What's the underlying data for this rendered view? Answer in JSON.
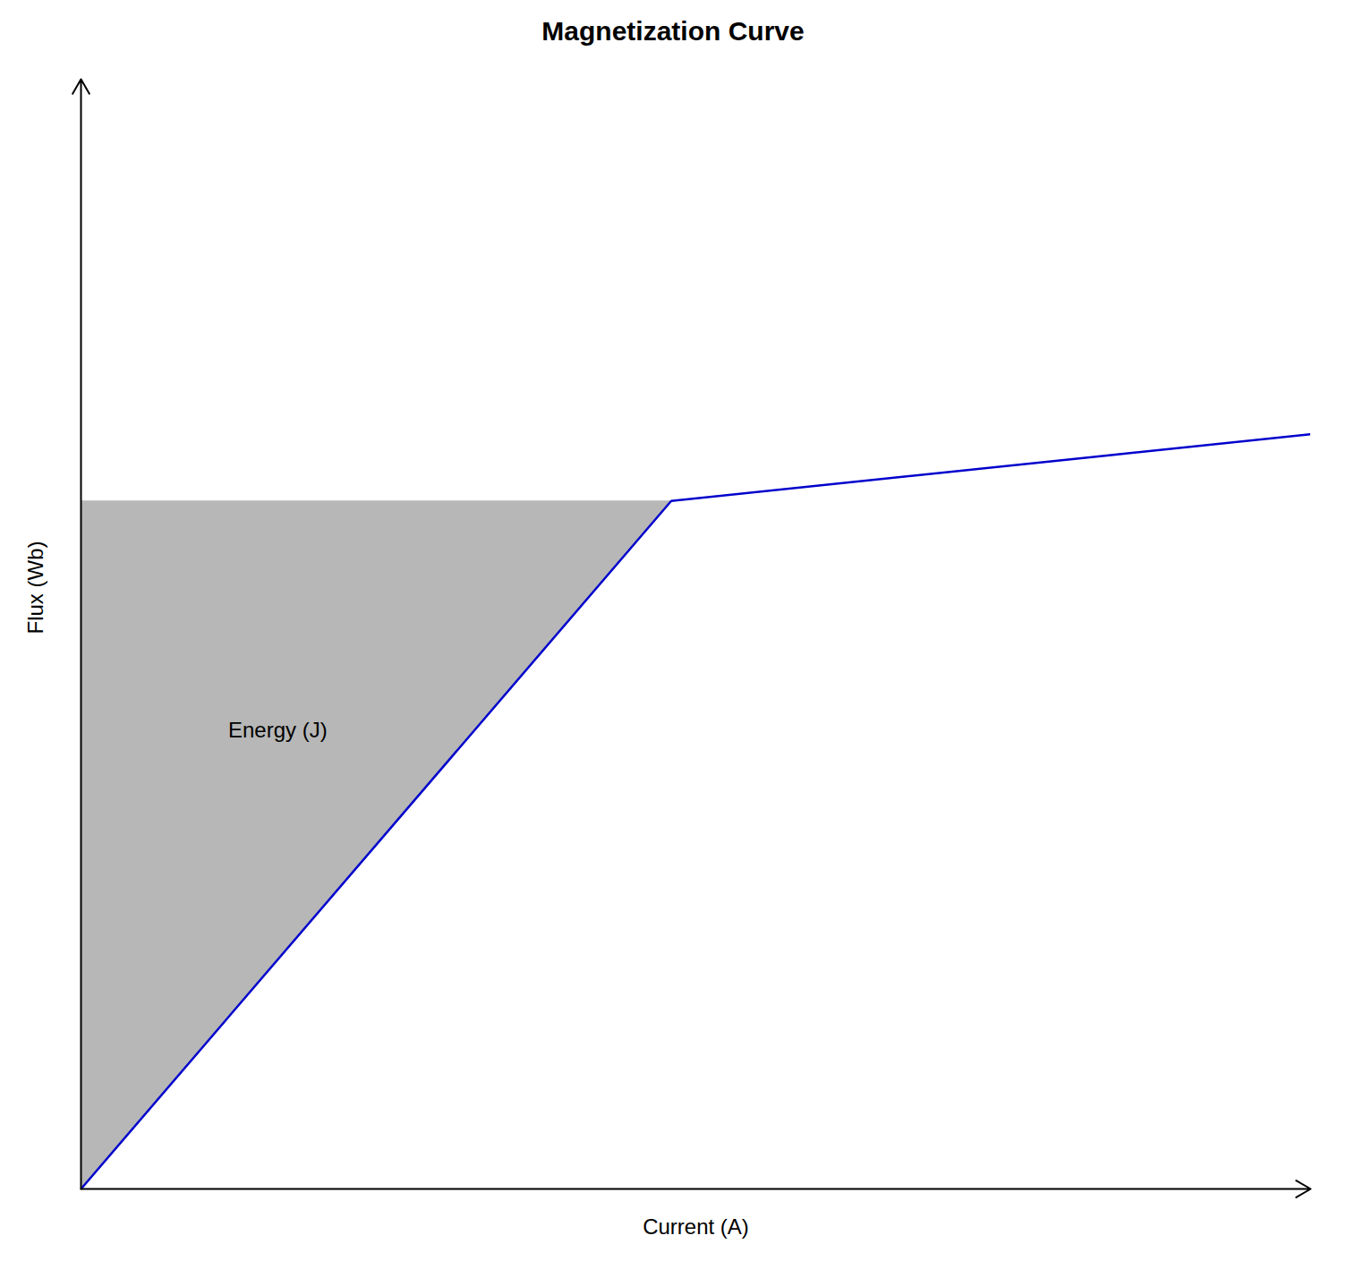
{
  "chart_data": {
    "type": "line",
    "title": "Magnetization Curve",
    "xlabel": "Current (A)",
    "ylabel": "Flux (Wb)",
    "annotation": "Energy (J)",
    "x": [
      0.0,
      0.48,
      1.0
    ],
    "values": [
      0.0,
      0.62,
      0.68
    ],
    "color": "#0000CC",
    "xlim": [
      0,
      1.0
    ],
    "ylim": [
      0,
      1.0
    ],
    "tick_labels": false,
    "grid": false
  }
}
